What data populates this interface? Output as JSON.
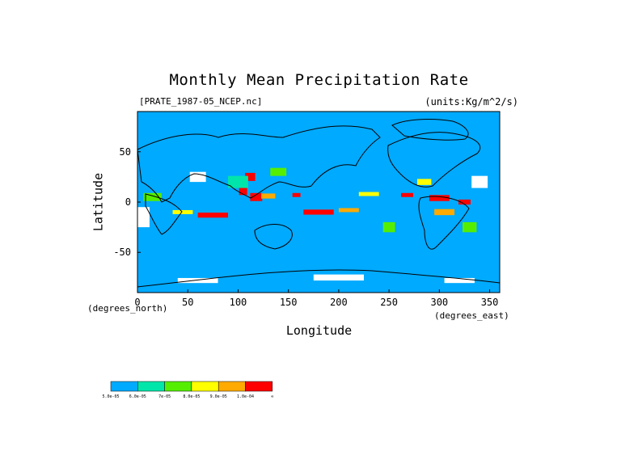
{
  "chart_data": {
    "type": "heatmap",
    "title": "Monthly Mean Precipitation Rate",
    "subtitle_left": "[PRATE_1987-05_NCEP.nc]",
    "subtitle_right": "(units:Kg/m^2/s)",
    "xlabel": "Longitude",
    "ylabel": "Latitude",
    "x_unit_label": "(degrees_north)",
    "y_unit_label": "(degrees_east)",
    "xlim": [
      0,
      360
    ],
    "ylim": [
      -90,
      90
    ],
    "x_ticks": [
      0,
      50,
      100,
      150,
      200,
      250,
      300,
      350
    ],
    "y_ticks": [
      50,
      0,
      -50
    ],
    "grid": false,
    "background_color": "#00aaff",
    "colorbar": {
      "colors": [
        "#00aaff",
        "#00e6aa",
        "#55ee00",
        "#ffff00",
        "#ffaa00",
        "#ff0000",
        "#ffffff"
      ],
      "labels": [
        "5.0e-05",
        "6.0e-05",
        "7e-05",
        "8.0e-05",
        "9.0e-05",
        "1.0e-04",
        "∞"
      ]
    },
    "regions": [
      {
        "level": 5,
        "lon": 105,
        "lat": 12,
        "w": 8,
        "h": 10
      },
      {
        "level": 5,
        "lon": 112,
        "lat": 25,
        "w": 10,
        "h": 8
      },
      {
        "level": 5,
        "lon": 118,
        "lat": 5,
        "w": 12,
        "h": 8
      },
      {
        "level": 5,
        "lon": 180,
        "lat": -10,
        "w": 30,
        "h": 5
      },
      {
        "level": 5,
        "lon": 75,
        "lat": -13,
        "w": 30,
        "h": 5
      },
      {
        "level": 5,
        "lon": 300,
        "lat": 4,
        "w": 20,
        "h": 6
      },
      {
        "level": 5,
        "lon": 325,
        "lat": 0,
        "w": 12,
        "h": 5
      },
      {
        "level": 5,
        "lon": 268,
        "lat": 7,
        "w": 12,
        "h": 4
      },
      {
        "level": 5,
        "lon": 158,
        "lat": 7,
        "w": 8,
        "h": 4
      },
      {
        "level": 4,
        "lon": 130,
        "lat": 6,
        "w": 14,
        "h": 5
      },
      {
        "level": 4,
        "lon": 210,
        "lat": -8,
        "w": 20,
        "h": 4
      },
      {
        "level": 4,
        "lon": 305,
        "lat": -10,
        "w": 20,
        "h": 6
      },
      {
        "level": 3,
        "lon": 45,
        "lat": -10,
        "w": 20,
        "h": 4
      },
      {
        "level": 3,
        "lon": 285,
        "lat": 20,
        "w": 14,
        "h": 6
      },
      {
        "level": 3,
        "lon": 230,
        "lat": 8,
        "w": 20,
        "h": 4
      },
      {
        "level": 2,
        "lon": 15,
        "lat": 5,
        "w": 18,
        "h": 8
      },
      {
        "level": 2,
        "lon": 140,
        "lat": 30,
        "w": 16,
        "h": 8
      },
      {
        "level": 2,
        "lon": 250,
        "lat": -25,
        "w": 12,
        "h": 10
      },
      {
        "level": 2,
        "lon": 330,
        "lat": -25,
        "w": 14,
        "h": 10
      },
      {
        "level": 1,
        "lon": 100,
        "lat": 20,
        "w": 20,
        "h": 12
      },
      {
        "level": 6,
        "lon": 60,
        "lat": 25,
        "w": 16,
        "h": 10
      },
      {
        "level": 6,
        "lon": 5,
        "lat": -15,
        "w": 14,
        "h": 20
      },
      {
        "level": 6,
        "lon": 340,
        "lat": 20,
        "w": 16,
        "h": 12
      },
      {
        "level": 6,
        "lon": 200,
        "lat": -75,
        "w": 50,
        "h": 6
      },
      {
        "level": 6,
        "lon": 60,
        "lat": -78,
        "w": 40,
        "h": 5
      },
      {
        "level": 6,
        "lon": 320,
        "lat": -78,
        "w": 30,
        "h": 5
      }
    ]
  }
}
